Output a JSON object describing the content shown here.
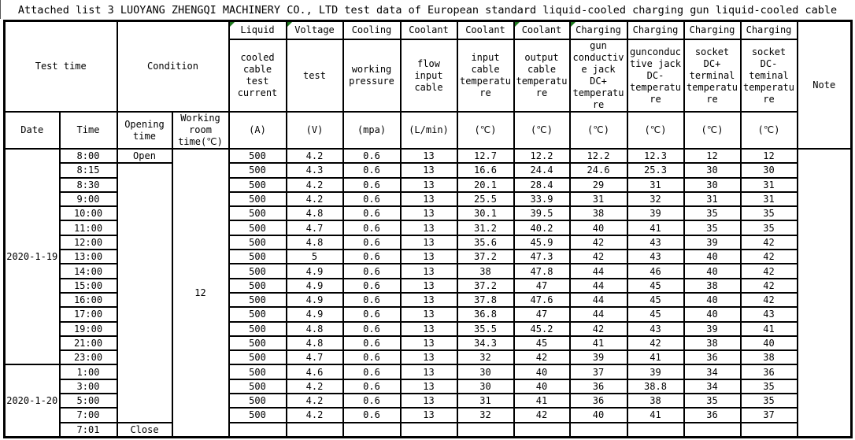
{
  "title": "Attached list 3 LUOYANG ZHENGQI MACHINERY CO., LTD test data of European standard liquid-cooled charging gun liquid-cooled cable",
  "colors": {
    "border": "#000000",
    "gridline": "#c9c9c9",
    "error_flag_green": "#1e7a1e"
  },
  "table": {
    "header": {
      "test_time": "Test time",
      "condition": "Condition",
      "note": "Note",
      "columns": [
        {
          "word": "Liquid",
          "rest": "cooled\ncable\ntest\ncurrent",
          "unit": "(A)",
          "flag": true
        },
        {
          "word": "Voltage",
          "rest": "test",
          "unit": "(V)",
          "flag": true
        },
        {
          "word": "Cooling",
          "rest": "working\npressure",
          "unit": "(mpa)",
          "flag": false
        },
        {
          "word": "Coolant",
          "rest": "flow\ninput\ncable",
          "unit": "(L/min)",
          "flag": false
        },
        {
          "word": "Coolant",
          "rest": "input\ncable\ntemperatu\nre",
          "unit": "(℃)",
          "flag": false
        },
        {
          "word": "Coolant",
          "rest": "output\ncable\ntemperatu\nre",
          "unit": "(℃)",
          "flag": true
        },
        {
          "word": "Charging",
          "rest": "gun\nconductiv\ne jack\nDC+\ntemperatu\nre",
          "unit": "(℃)",
          "flag": true
        },
        {
          "word": "Charging",
          "rest": "gunconduc\ntive jack\nDC-\ntemperatu\nre",
          "unit": "(℃)",
          "flag": false
        },
        {
          "word": "Charging",
          "rest": "socket\nDC+\nterminal\ntemperatu\nre",
          "unit": "(℃)",
          "flag": false
        },
        {
          "word": "Charging",
          "rest": "socket\nDC-\nteminal\ntemperatu\nre",
          "unit": "(℃)",
          "flag": false
        }
      ],
      "sub": {
        "date": "Date",
        "time": "Time",
        "opening": "Opening\ntime",
        "working_room": "Working\nroom\ntime(℃)"
      }
    },
    "dates": [
      {
        "label": "2020-1-19",
        "rows": 15
      },
      {
        "label": "2020-1-20",
        "rows": 5
      }
    ],
    "opening": {
      "open": "Open",
      "close": "Close"
    },
    "working_room_value": "12",
    "note_value": "",
    "rows": [
      {
        "time": "8:00",
        "values": [
          "500",
          "4.2",
          "0.6",
          "13",
          "12.7",
          "12.2",
          "12.2",
          "12.3",
          "12",
          "12"
        ]
      },
      {
        "time": "8:15",
        "values": [
          "500",
          "4.3",
          "0.6",
          "13",
          "16.6",
          "24.4",
          "24.6",
          "25.3",
          "30",
          "30"
        ]
      },
      {
        "time": "8:30",
        "values": [
          "500",
          "4.2",
          "0.6",
          "13",
          "20.1",
          "28.4",
          "29",
          "31",
          "30",
          "31"
        ]
      },
      {
        "time": "9:00",
        "values": [
          "500",
          "4.2",
          "0.6",
          "13",
          "25.5",
          "33.9",
          "31",
          "32",
          "31",
          "31"
        ]
      },
      {
        "time": "10:00",
        "values": [
          "500",
          "4.8",
          "0.6",
          "13",
          "30.1",
          "39.5",
          "38",
          "39",
          "35",
          "35"
        ]
      },
      {
        "time": "11:00",
        "values": [
          "500",
          "4.7",
          "0.6",
          "13",
          "31.2",
          "40.2",
          "40",
          "41",
          "35",
          "35"
        ]
      },
      {
        "time": "12:00",
        "values": [
          "500",
          "4.8",
          "0.6",
          "13",
          "35.6",
          "45.9",
          "42",
          "43",
          "39",
          "42"
        ]
      },
      {
        "time": "13:00",
        "values": [
          "500",
          "5",
          "0.6",
          "13",
          "37.2",
          "47.3",
          "42",
          "43",
          "40",
          "42"
        ]
      },
      {
        "time": "14:00",
        "values": [
          "500",
          "4.9",
          "0.6",
          "13",
          "38",
          "47.8",
          "44",
          "46",
          "40",
          "42"
        ]
      },
      {
        "time": "15:00",
        "values": [
          "500",
          "4.9",
          "0.6",
          "13",
          "37.2",
          "47",
          "44",
          "45",
          "38",
          "42"
        ]
      },
      {
        "time": "16:00",
        "values": [
          "500",
          "4.9",
          "0.6",
          "13",
          "37.8",
          "47.6",
          "44",
          "45",
          "40",
          "42"
        ]
      },
      {
        "time": "17:00",
        "values": [
          "500",
          "4.9",
          "0.6",
          "13",
          "36.8",
          "47",
          "44",
          "45",
          "40",
          "43"
        ]
      },
      {
        "time": "19:00",
        "values": [
          "500",
          "4.8",
          "0.6",
          "13",
          "35.5",
          "45.2",
          "42",
          "43",
          "39",
          "41"
        ]
      },
      {
        "time": "21:00",
        "values": [
          "500",
          "4.8",
          "0.6",
          "13",
          "34.3",
          "45",
          "41",
          "42",
          "38",
          "40"
        ]
      },
      {
        "time": "23:00",
        "values": [
          "500",
          "4.7",
          "0.6",
          "13",
          "32",
          "42",
          "39",
          "41",
          "36",
          "38"
        ]
      },
      {
        "time": "1:00",
        "values": [
          "500",
          "4.6",
          "0.6",
          "13",
          "30",
          "40",
          "37",
          "39",
          "34",
          "36"
        ]
      },
      {
        "time": "3:00",
        "values": [
          "500",
          "4.2",
          "0.6",
          "13",
          "30",
          "40",
          "36",
          "38.8",
          "34",
          "35"
        ]
      },
      {
        "time": "5:00",
        "values": [
          "500",
          "4.2",
          "0.6",
          "13",
          "31",
          "41",
          "36",
          "38",
          "35",
          "35"
        ]
      },
      {
        "time": "7:00",
        "values": [
          "500",
          "4.2",
          "0.6",
          "13",
          "32",
          "42",
          "40",
          "41",
          "36",
          "37"
        ]
      },
      {
        "time": "7:01",
        "values": [
          "",
          "",
          "",
          "",
          "",
          "",
          "",
          "",
          "",
          ""
        ]
      }
    ]
  }
}
